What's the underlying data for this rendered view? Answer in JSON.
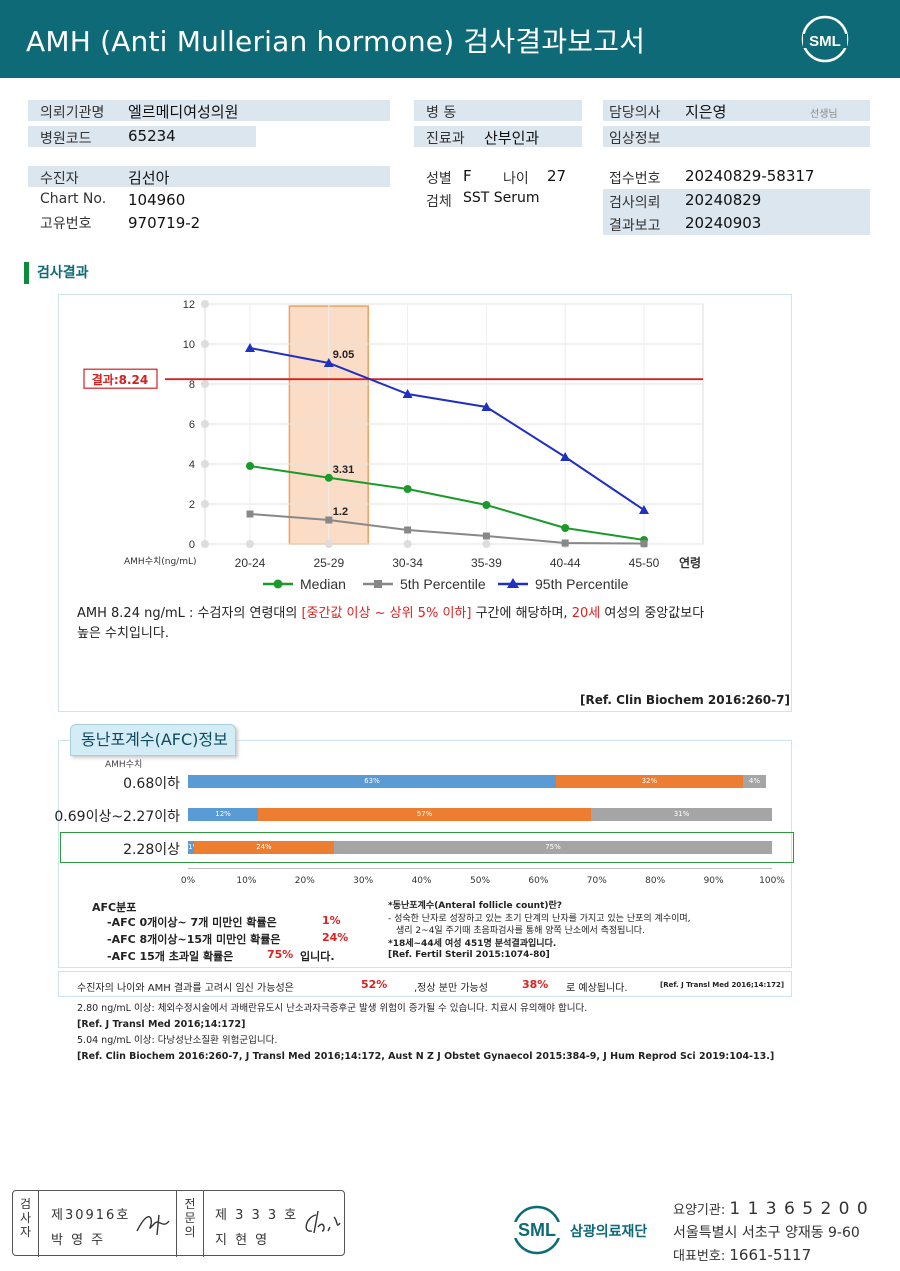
{
  "header": {
    "title": "AMH (Anti Mullerian hormone) 검사결과보고서",
    "logo": "SML"
  },
  "info": {
    "institution_label": "의뢰기관명",
    "institution": "엘르메디여성의원",
    "hospital_code_label": "병원코드",
    "hospital_code": "65234",
    "ward_label": "병  동",
    "ward": "",
    "dept_label": "진료과",
    "dept": "산부인과",
    "doctor_label": "담당의사",
    "doctor": "지은영",
    "doctor_suffix": "선생님",
    "clinical_label": "임상정보",
    "clinical": "",
    "patient_label": "수진자",
    "patient": "김선아",
    "chart_label": "Chart No.",
    "chart": "104960",
    "id_label": "고유번호",
    "id": "970719-2",
    "sex_label": "성별",
    "sex": "F",
    "age_label": "나이",
    "age": "27",
    "specimen_label": "검체",
    "specimen": "SST Serum",
    "receipt_label": "접수번호",
    "receipt": "20240829-58317",
    "request_label": "검사의뢰",
    "request": "20240829",
    "report_label": "결과보고",
    "report": "20240903"
  },
  "section_title": "검사결과",
  "chart_data": {
    "type": "line",
    "categories": [
      "20-24",
      "25-29",
      "30-34",
      "35-39",
      "40-44",
      "45-50"
    ],
    "x_label": "연령",
    "y_label": "AMH수치(ng/mL)",
    "ylim": [
      0,
      12
    ],
    "yticks": [
      0,
      2,
      4,
      6,
      8,
      10,
      12
    ],
    "grid": true,
    "legend_position": "bottom",
    "highlight_category": "25-29",
    "result_line": {
      "value": 8.24,
      "label": "결과:8.24",
      "color": "#d42020"
    },
    "series": [
      {
        "name": "Median",
        "values": [
          3.9,
          3.31,
          2.75,
          1.95,
          0.8,
          0.2
        ],
        "color": "#1a9a2a",
        "marker": "circle",
        "labels": {
          "1": "3.31"
        }
      },
      {
        "name": "5th Percentile",
        "values": [
          1.5,
          1.2,
          0.7,
          0.4,
          0.05,
          0.02
        ],
        "color": "#888888",
        "marker": "square",
        "labels": {
          "1": "1.2"
        }
      },
      {
        "name": "95th Percentile",
        "values": [
          9.8,
          9.05,
          7.5,
          6.85,
          4.35,
          1.7
        ],
        "color": "#2030c0",
        "marker": "triangle",
        "labels": {
          "1": "9.05"
        }
      }
    ]
  },
  "interpretation": {
    "line1_pre": "AMH  8.24 ng/mL : 수검자의 연령대의 ",
    "line1_red": "[중간값 이상 ~ 상위 5% 이하]",
    "line1_mid": "  구간에 해당하며, ",
    "line1_red2": "20세",
    "line1_post": " 여성의 중앙값보다",
    "line2": "높은 수치입니다.",
    "ref": "[Ref. Clin Biochem 2016:260-7]"
  },
  "afc": {
    "tab": "동난포계수(AFC)정보",
    "unit": "AMH수치",
    "rows": [
      {
        "label": "0.68이하",
        "segments": [
          63,
          32,
          4
        ],
        "texts": [
          "63%",
          "32%",
          "4%"
        ]
      },
      {
        "label": "0.69이상~2.27이하",
        "segments": [
          12,
          57,
          31
        ],
        "texts": [
          "12%",
          "57%",
          "31%"
        ]
      },
      {
        "label": "2.28이상",
        "segments": [
          1,
          24,
          75
        ],
        "texts": [
          "1%",
          "24%",
          "75%"
        ]
      }
    ],
    "colors": [
      "#5b9bd5",
      "#ed7d31",
      "#a5a5a5"
    ],
    "xticks": [
      "0%",
      "10%",
      "20%",
      "30%",
      "40%",
      "50%",
      "60%",
      "70%",
      "80%",
      "90%",
      "100%"
    ],
    "dist_title": "AFC분포",
    "dist": [
      {
        "text": "-AFC  0개이상~ 7개 미만인 확률은",
        "value": "1%"
      },
      {
        "text": "-AFC  8개이상~15개 미만인 확률은",
        "value": "24%"
      },
      {
        "text": "-AFC  15개 초과일 확률은",
        "value": "75%",
        "suffix": "입니다."
      }
    ],
    "def_title": "*동난포계수(Anteral follicle count)란?",
    "def_line1": "- 성숙한 난자로 성장하고 있는 초기 단계의 난자를 가지고 있는 난포의 계수이며,",
    "def_line2": "생리 2~4일 주기때 초음파검사를 통해 양쪽 난소에서 측정됩니다.",
    "def_line3": "*18세~44세 여성 451명 분석결과입니다.",
    "def_ref": "[Ref. Fertil Steril 2015:1074-80]"
  },
  "pregnancy": {
    "pre": "수진자의 나이와 AMH 결과를 고려시 임신 가능성은",
    "v1": "52%",
    "mid": ",정상 분만 가능성",
    "v2": "38%",
    "post": "로 예상됩니다.",
    "ref": "[Ref. J Transl Med 2016;14:172]"
  },
  "notes": [
    "2.80  ng/mL  이상: 체외수정시술에서 과배란유도시 난소과자극증후군 발생 위험이 증가될 수 있습니다. 치료시 유의해야 합니다.",
    "[Ref. J Transl Med 2016;14:172]",
    "5.04  ng/mL  이상: 다낭성난소질환 위험군입니다.",
    "[Ref. Clin Biochem 2016:260-7, J Transl Med 2016;14:172, Aust N Z J Obstet Gynaecol 2015:384-9, J Hum Reprod Sci 2019:104-13.]"
  ],
  "sign": {
    "col1": "검사자",
    "col1_line1": "제30916호",
    "col1_line2": "박 영 주",
    "col2": "전문의",
    "col2_line1": "제 3 3 3 호",
    "col2_line2": "지 현 영"
  },
  "footer": {
    "foundation": "삼광의료재단",
    "code_label": "요양기관",
    "code": "1 1 3 6 5 2 0 0",
    "address": "서울특별시 서초구 양재동 9-60",
    "tel_label": "대표번호",
    "tel": "1661-5117"
  }
}
